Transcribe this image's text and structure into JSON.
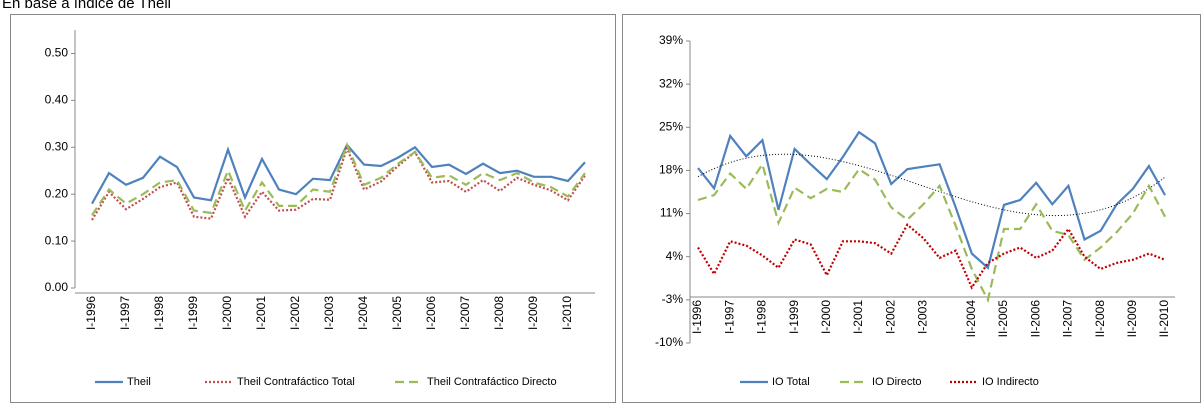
{
  "heading": "En base a índice de Theil",
  "chart_data": [
    {
      "type": "line",
      "categories": [
        "I-1996",
        null,
        "I-1997",
        null,
        "I-1998",
        null,
        "I-1999",
        null,
        "I-2000",
        null,
        "I-2001",
        null,
        "I-2002",
        null,
        "I-2003",
        null,
        "I-2004",
        null,
        "I-2005",
        null,
        "I-2006",
        null,
        "I-2007",
        null,
        "I-2008",
        null,
        "I-2009",
        null,
        "I-2010",
        null
      ],
      "series": [
        {
          "name": "Theil",
          "color": "#4f81bd",
          "dash": "solid",
          "values": [
            0.18,
            0.245,
            0.22,
            0.235,
            0.28,
            0.258,
            0.193,
            0.187,
            0.295,
            0.193,
            0.275,
            0.21,
            0.2,
            0.233,
            0.23,
            0.305,
            0.263,
            0.26,
            0.278,
            0.3,
            0.258,
            0.263,
            0.243,
            0.265,
            0.245,
            0.25,
            0.237,
            0.237,
            0.228,
            0.268
          ]
        },
        {
          "name": "Theil Contrafáctico  Total",
          "color": "#c0504d",
          "dash": "dotted",
          "values": [
            0.145,
            0.205,
            0.168,
            0.19,
            0.215,
            0.225,
            0.152,
            0.148,
            0.235,
            0.152,
            0.205,
            0.165,
            0.167,
            0.19,
            0.188,
            0.298,
            0.21,
            0.227,
            0.26,
            0.29,
            0.225,
            0.228,
            0.205,
            0.23,
            0.207,
            0.235,
            0.22,
            0.208,
            0.187,
            0.24
          ]
        },
        {
          "name": "Theil Contrafáctico  Directo",
          "color": "#9bbb59",
          "dash": "dashed",
          "values": [
            0.155,
            0.21,
            0.18,
            0.2,
            0.225,
            0.23,
            0.165,
            0.16,
            0.25,
            0.165,
            0.225,
            0.175,
            0.175,
            0.21,
            0.205,
            0.305,
            0.22,
            0.235,
            0.265,
            0.29,
            0.235,
            0.24,
            0.22,
            0.245,
            0.23,
            0.245,
            0.225,
            0.215,
            0.195,
            0.245
          ]
        }
      ],
      "ylim": [
        0,
        0.55
      ],
      "yticks": [
        {
          "value": 0,
          "label": "0.00"
        },
        {
          "value": 0.1,
          "label": "0.10"
        },
        {
          "value": 0.2,
          "label": "0.20"
        },
        {
          "value": 0.3,
          "label": "0.30"
        },
        {
          "value": 0.4,
          "label": "0.40"
        },
        {
          "value": 0.5,
          "label": "0.50"
        }
      ],
      "grid": false,
      "legend": "bottom"
    },
    {
      "type": "line",
      "categories": [
        "I-1996",
        null,
        "I-1997",
        null,
        "I-1998",
        null,
        "I-1999",
        null,
        "I-2000",
        null,
        "I-2001",
        null,
        "I-2002",
        null,
        "I-2003",
        null,
        null,
        "II-2004",
        null,
        "II-2005",
        null,
        "II-2006",
        null,
        "II-2007",
        null,
        "II-2008",
        null,
        "II-2009",
        null,
        "II-2010"
      ],
      "series": [
        {
          "name": "IO Total",
          "color": "#4f81bd",
          "dash": "solid",
          "trendline": true,
          "values": [
            18.4,
            15.1,
            23.6,
            20.3,
            22.9,
            11.6,
            21.5,
            19.0,
            16.6,
            20.2,
            24.2,
            22.4,
            15.8,
            18.2,
            18.6,
            19.0,
            12.0,
            4.5,
            2.2,
            12.4,
            13.2,
            16.0,
            12.5,
            15.5,
            6.8,
            8.2,
            12.5,
            15.0,
            18.7,
            14.0
          ]
        },
        {
          "name": "IO Directo",
          "color": "#9bbb59",
          "dash": "dashed",
          "values": [
            13.2,
            14.0,
            17.5,
            15.0,
            19.0,
            9.5,
            15.2,
            13.5,
            15.0,
            14.5,
            18.2,
            16.5,
            12.0,
            10.0,
            12.5,
            15.5,
            9.0,
            2.0,
            -3.0,
            8.5,
            8.5,
            12.5,
            8.2,
            7.5,
            3.5,
            5.5,
            8.0,
            11.0,
            15.5,
            10.5
          ]
        },
        {
          "name": "IO Indirecto",
          "color": "#c00000",
          "dash": "dotted",
          "values": [
            5.5,
            1.2,
            6.5,
            5.8,
            4.2,
            2.2,
            6.8,
            6.0,
            1.0,
            6.5,
            6.5,
            6.2,
            4.5,
            9.2,
            7.0,
            3.8,
            5.0,
            -1.0,
            3.0,
            4.5,
            5.5,
            3.8,
            5.0,
            8.5,
            4.0,
            2.0,
            3.0,
            3.5,
            4.5,
            3.5
          ]
        }
      ],
      "ylim": [
        -10,
        39
      ],
      "yticks": [
        {
          "value": -10,
          "label": "-10%"
        },
        {
          "value": -3,
          "label": "-3%"
        },
        {
          "value": 4,
          "label": "4%"
        },
        {
          "value": 11,
          "label": "11%"
        },
        {
          "value": 18,
          "label": "18%"
        },
        {
          "value": 25,
          "label": "25%"
        },
        {
          "value": 32,
          "label": "32%"
        },
        {
          "value": 39,
          "label": "39%"
        }
      ],
      "grid": false,
      "legend": "bottom"
    }
  ]
}
